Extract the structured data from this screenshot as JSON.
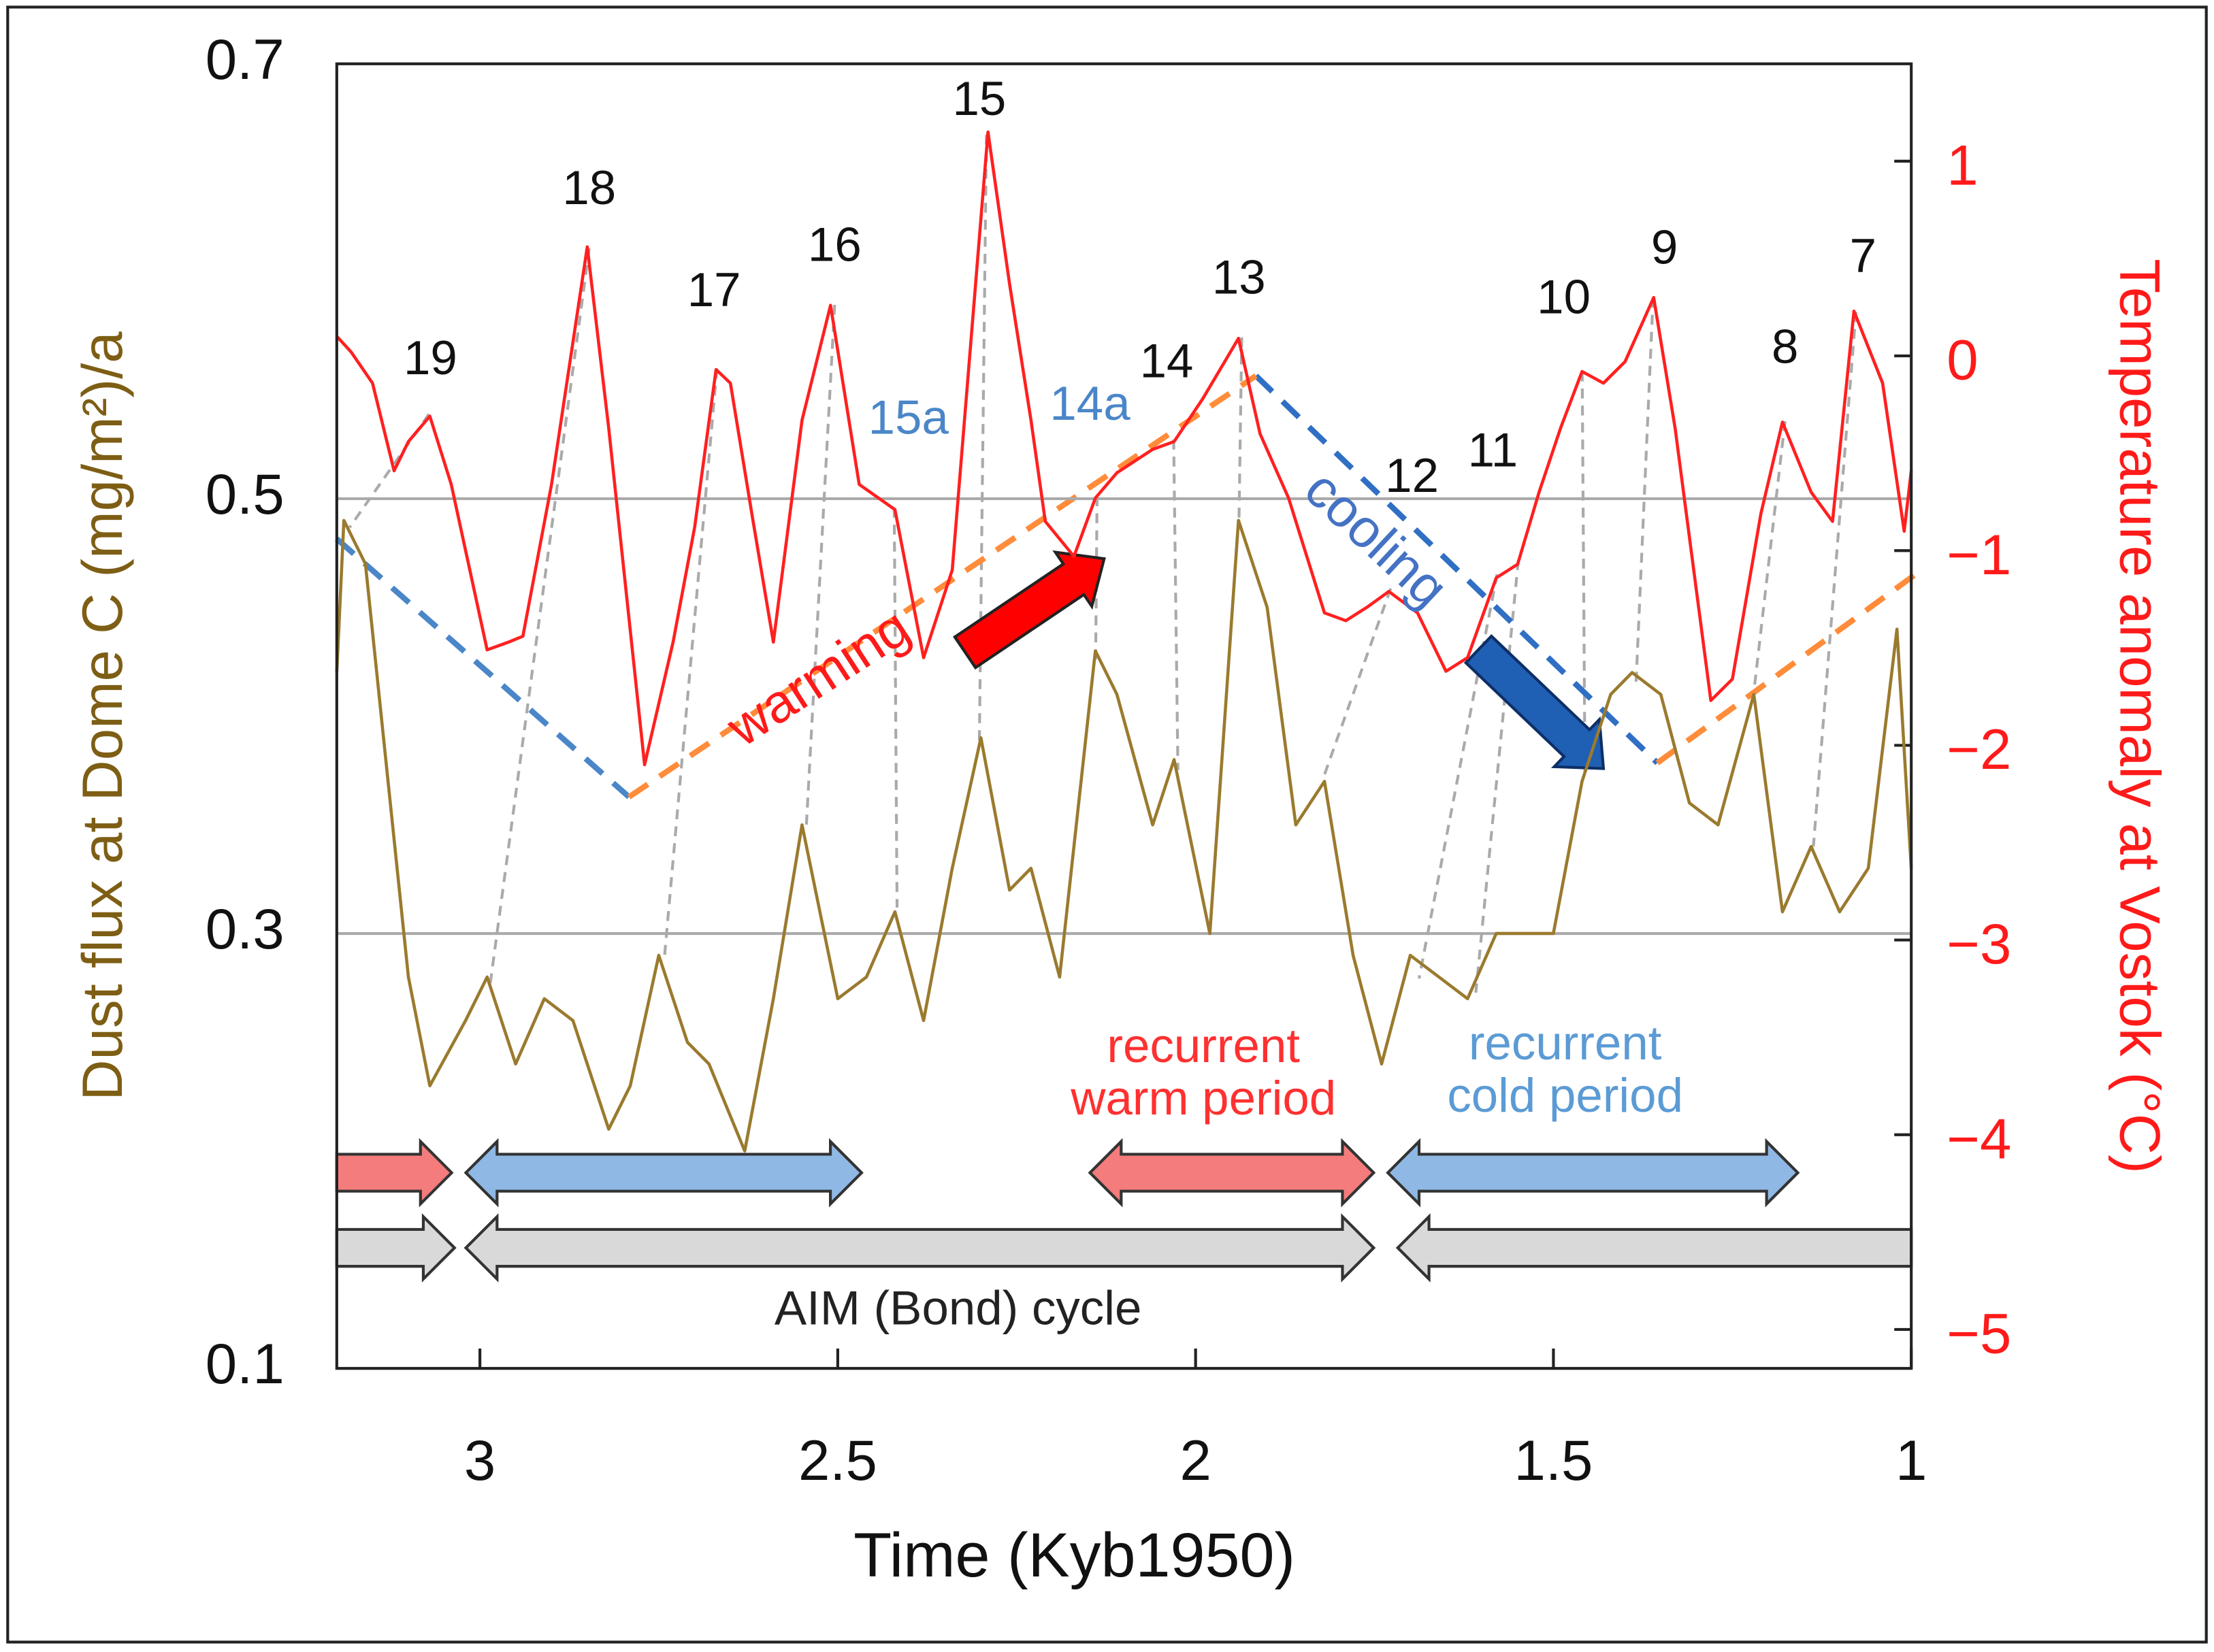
{
  "chart_data": {
    "type": "line",
    "xlabel": "Time (Kyb1950)",
    "ylabel": "Dust flux at Dome C (mg/m²)/a",
    "y2label": "Temperature anomaly at Vostok (°C)",
    "xlim": [
      3.2,
      1
    ],
    "xticks": [
      3,
      2.5,
      2,
      1.5,
      1
    ],
    "ylim": [
      0.1,
      0.7
    ],
    "yticks": [
      0.1,
      0.3,
      0.5,
      0.7
    ],
    "y2lim": [
      -5.2,
      1.5
    ],
    "y2ticks": [
      {
        "value": -5,
        "label": "−5"
      },
      {
        "value": -4,
        "label": "−4"
      },
      {
        "value": -3,
        "label": "−3"
      },
      {
        "value": -2,
        "label": "−2"
      },
      {
        "value": -1,
        "label": "−1"
      },
      0,
      1
    ],
    "grid": true,
    "ylabel_color": "#7d5e14",
    "y2label_color": "#ff1a1a",
    "series": [
      {
        "axis": "y",
        "color": "#9a7a2e",
        "x": [
          3.2,
          3.19,
          3.16,
          3.1,
          3.07,
          3.02,
          2.99,
          2.95,
          2.91,
          2.87,
          2.82,
          2.79,
          2.75,
          2.71,
          2.68,
          2.63,
          2.59,
          2.55,
          2.5,
          2.46,
          2.42,
          2.38,
          2.34,
          2.3,
          2.26,
          2.23,
          2.19,
          2.14,
          2.11,
          2.06,
          2.03,
          1.98,
          1.94,
          1.9,
          1.86,
          1.82,
          1.78,
          1.74,
          1.7,
          1.66,
          1.62,
          1.58,
          1.54,
          1.5,
          1.46,
          1.42,
          1.39,
          1.35,
          1.31,
          1.27,
          1.22,
          1.18,
          1.14,
          1.1,
          1.06,
          1.02,
          1.0
        ],
        "values": [
          0.42,
          0.49,
          0.47,
          0.28,
          0.23,
          0.26,
          0.28,
          0.24,
          0.27,
          0.26,
          0.21,
          0.23,
          0.29,
          0.25,
          0.24,
          0.2,
          0.27,
          0.35,
          0.27,
          0.28,
          0.31,
          0.26,
          0.33,
          0.39,
          0.32,
          0.33,
          0.28,
          0.43,
          0.41,
          0.35,
          0.38,
          0.3,
          0.49,
          0.45,
          0.35,
          0.37,
          0.29,
          0.24,
          0.29,
          0.28,
          0.27,
          0.3,
          0.3,
          0.3,
          0.37,
          0.41,
          0.42,
          0.41,
          0.36,
          0.35,
          0.41,
          0.31,
          0.34,
          0.31,
          0.33,
          0.44,
          0.33
        ]
      },
      {
        "axis": "y2",
        "color": "#ff2020",
        "x": [
          3.2,
          3.18,
          3.15,
          3.12,
          3.1,
          3.07,
          3.04,
          2.99,
          2.96,
          2.94,
          2.9,
          2.85,
          2.82,
          2.77,
          2.73,
          2.7,
          2.67,
          2.65,
          2.62,
          2.59,
          2.55,
          2.51,
          2.47,
          2.42,
          2.38,
          2.34,
          2.29,
          2.26,
          2.23,
          2.21,
          2.17,
          2.14,
          2.11,
          2.06,
          2.03,
          1.99,
          1.94,
          1.91,
          1.87,
          1.82,
          1.79,
          1.76,
          1.73,
          1.69,
          1.65,
          1.62,
          1.58,
          1.55,
          1.52,
          1.49,
          1.46,
          1.43,
          1.4,
          1.36,
          1.33,
          1.28,
          1.25,
          1.21,
          1.18,
          1.14,
          1.11,
          1.08,
          1.04,
          1.01,
          1.0
        ],
        "values": [
          0.1,
          0.02,
          -0.14,
          -0.59,
          -0.44,
          -0.31,
          -0.66,
          -1.51,
          -1.47,
          -1.44,
          -0.66,
          0.56,
          -0.37,
          -2.1,
          -1.47,
          -0.88,
          -0.07,
          -0.14,
          -0.81,
          -1.47,
          -0.33,
          0.26,
          -0.66,
          -0.79,
          -1.55,
          -1.1,
          1.15,
          0.37,
          -0.33,
          -0.85,
          -1.03,
          -0.73,
          -0.6,
          -0.48,
          -0.44,
          -0.22,
          0.09,
          -0.4,
          -0.73,
          -1.32,
          -1.36,
          -1.29,
          -1.21,
          -1.32,
          -1.62,
          -1.55,
          -1.14,
          -1.07,
          -0.7,
          -0.37,
          -0.08,
          -0.14,
          -0.03,
          0.3,
          -0.37,
          -1.77,
          -1.66,
          -0.81,
          -0.34,
          -0.7,
          -0.85,
          0.23,
          -0.14,
          -0.9,
          -0.59
        ]
      }
    ],
    "annotations": {
      "peaks": [
        "19",
        "18",
        "17",
        "16",
        "15",
        "15a",
        "14a",
        "14",
        "13",
        "12",
        "11",
        "10",
        "9",
        "8",
        "7"
      ],
      "warming": "warming",
      "cooling": "cooling",
      "recurrent_warm": [
        "recurrent",
        "warm period"
      ],
      "recurrent_cold": [
        "recurrent",
        "cold period"
      ],
      "cycle": "AIM (Bond) cycle"
    }
  }
}
